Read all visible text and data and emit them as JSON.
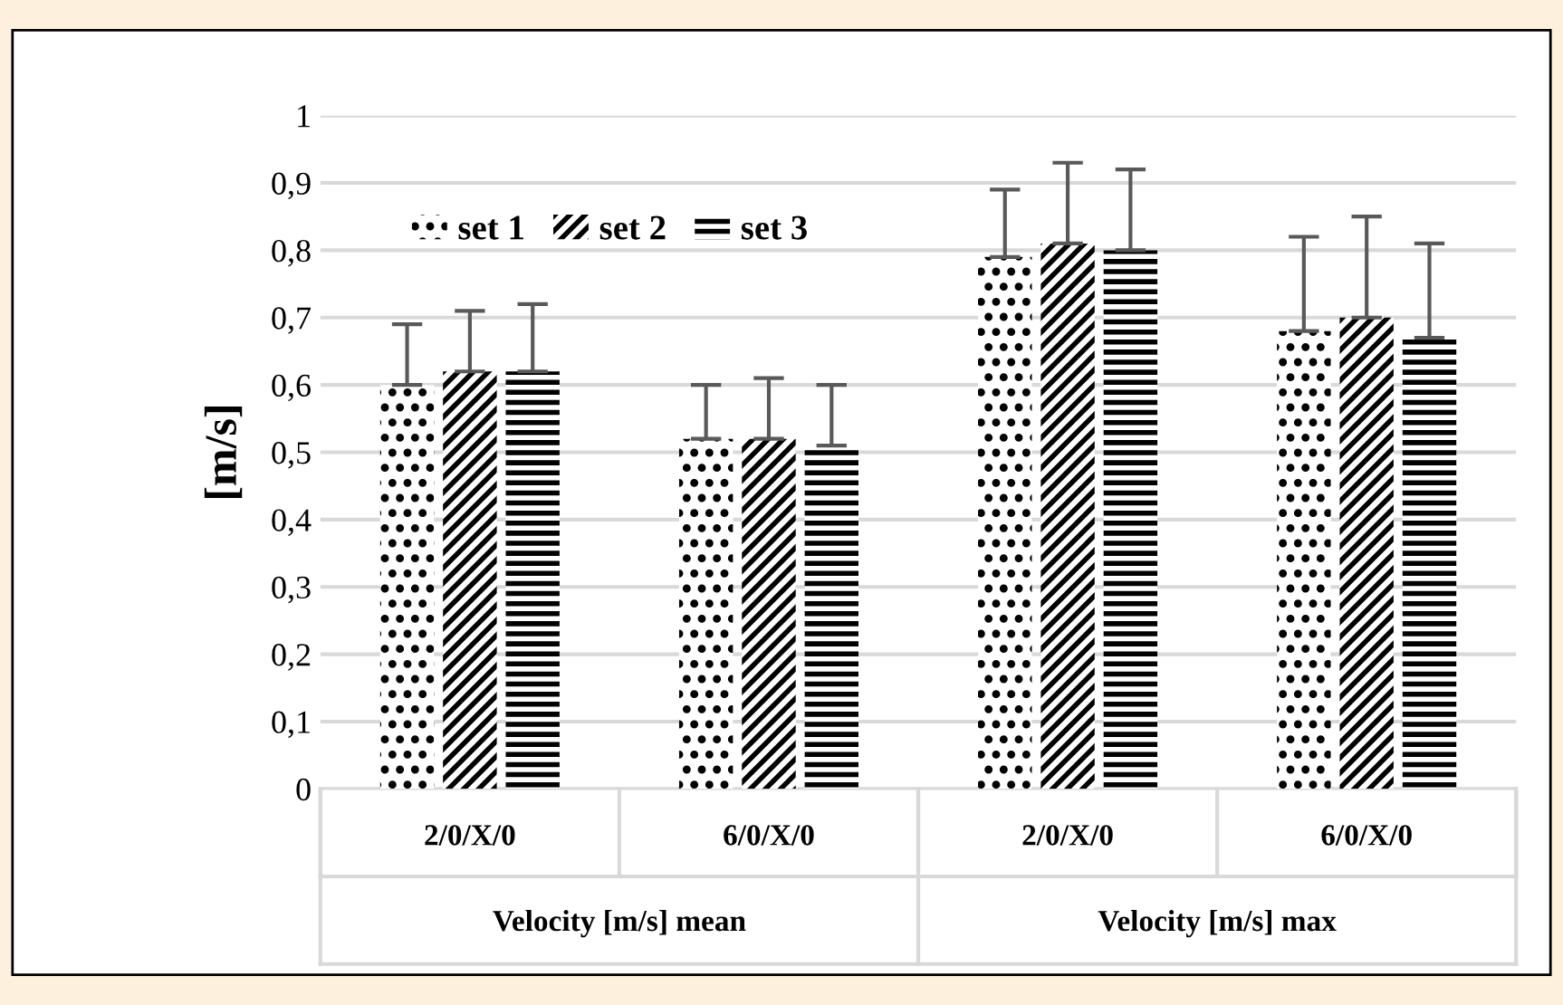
{
  "chart_data": {
    "type": "bar",
    "ylabel": "[m/s]",
    "categories": [
      "2/0/X/0",
      "6/0/X/0",
      "2/0/X/0",
      "6/0/X/0"
    ],
    "series": [
      {
        "name": "set 1",
        "color": "#000000",
        "values": [
          0.6,
          0.52,
          0.79,
          0.68
        ],
        "errors": [
          [
            0.6,
            0.69
          ],
          [
            0.52,
            0.6
          ],
          [
            0.79,
            0.89
          ],
          [
            0.68,
            0.82
          ]
        ]
      },
      {
        "name": "set 2",
        "color": "#000000",
        "values": [
          0.62,
          0.52,
          0.81,
          0.7
        ],
        "errors": [
          [
            0.62,
            0.71
          ],
          [
            0.52,
            0.61
          ],
          [
            0.81,
            0.93
          ],
          [
            0.7,
            0.85
          ]
        ]
      },
      {
        "name": "set 3",
        "color": "#000000",
        "values": [
          0.62,
          0.51,
          0.8,
          0.67
        ],
        "errors": [
          [
            0.62,
            0.72
          ],
          [
            0.51,
            0.6
          ],
          [
            0.8,
            0.92
          ],
          [
            0.67,
            0.81
          ]
        ]
      }
    ],
    "annotations": [
      "Velocity [m/s] mean",
      "Velocity [m/s] max"
    ],
    "ylim": [
      0,
      1
    ],
    "yticks": [
      {
        "value": 0,
        "label": "0"
      },
      {
        "value": 0.1,
        "label": "0,1"
      },
      {
        "value": 0.2,
        "label": "0,2"
      },
      {
        "value": 0.3,
        "label": "0,3"
      },
      {
        "value": 0.4,
        "label": "0,4"
      },
      {
        "value": 0.5,
        "label": "0,5"
      },
      {
        "value": 0.6,
        "label": "0,6"
      },
      {
        "value": 0.7,
        "label": "0,7"
      },
      {
        "value": 0.8,
        "label": "0,8"
      },
      {
        "value": 0.9,
        "label": "0,9"
      },
      {
        "value": 1,
        "label": "1"
      }
    ],
    "grid": "y",
    "legend": "top left"
  }
}
